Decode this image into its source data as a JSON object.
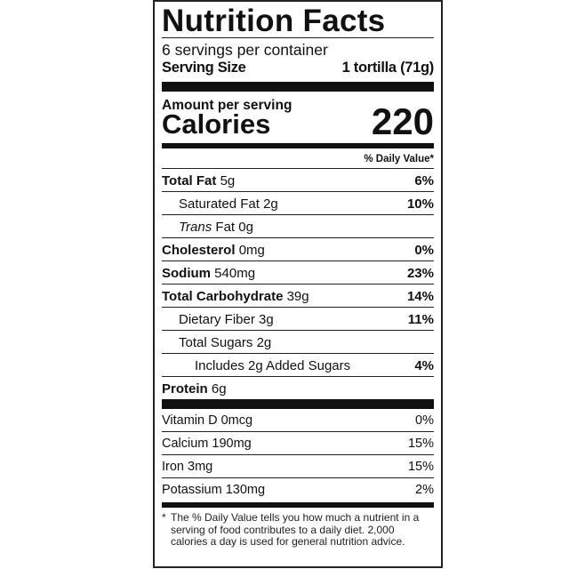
{
  "title": "Nutrition Facts",
  "servings_per_container": "6 servings per container",
  "serving_size": {
    "label": "Serving Size",
    "value": "1 tortilla (71g)"
  },
  "amount_per_serving": "Amount per serving",
  "calories": {
    "label": "Calories",
    "value": "220"
  },
  "daily_value_header": "% Daily Value*",
  "nutrients": [
    {
      "name": "Total Fat",
      "amount": "5g",
      "dv": "6%"
    },
    {
      "name": "Saturated Fat",
      "amount": "2g",
      "dv": "10%"
    },
    {
      "name": "Trans",
      "name_suffix": "Fat",
      "amount": "0g",
      "dv": ""
    },
    {
      "name": "Cholesterol",
      "amount": "0mg",
      "dv": "0%"
    },
    {
      "name": "Sodium",
      "amount": "540mg",
      "dv": "23%"
    },
    {
      "name": "Total Carbohydrate",
      "amount": "39g",
      "dv": "14%"
    },
    {
      "name": "Dietary Fiber",
      "amount": "3g",
      "dv": "11%"
    },
    {
      "name": "Total Sugars",
      "amount": "2g",
      "dv": ""
    },
    {
      "name": "Includes 2g Added Sugars",
      "amount": "",
      "dv": "4%"
    },
    {
      "name": "Protein",
      "amount": "6g",
      "dv": ""
    }
  ],
  "vitamins": [
    {
      "label": "Vitamin D 0mcg",
      "dv": "0%"
    },
    {
      "label": "Calcium 190mg",
      "dv": "15%"
    },
    {
      "label": "Iron 3mg",
      "dv": "15%"
    },
    {
      "label": "Potassium 130mg",
      "dv": "2%"
    }
  ],
  "footnote": {
    "star": "*",
    "text": "The % Daily Value tells you how much a nutrient in a serving of food contributes to a daily diet. 2,000 calories a day is used for general nutrition advice."
  }
}
